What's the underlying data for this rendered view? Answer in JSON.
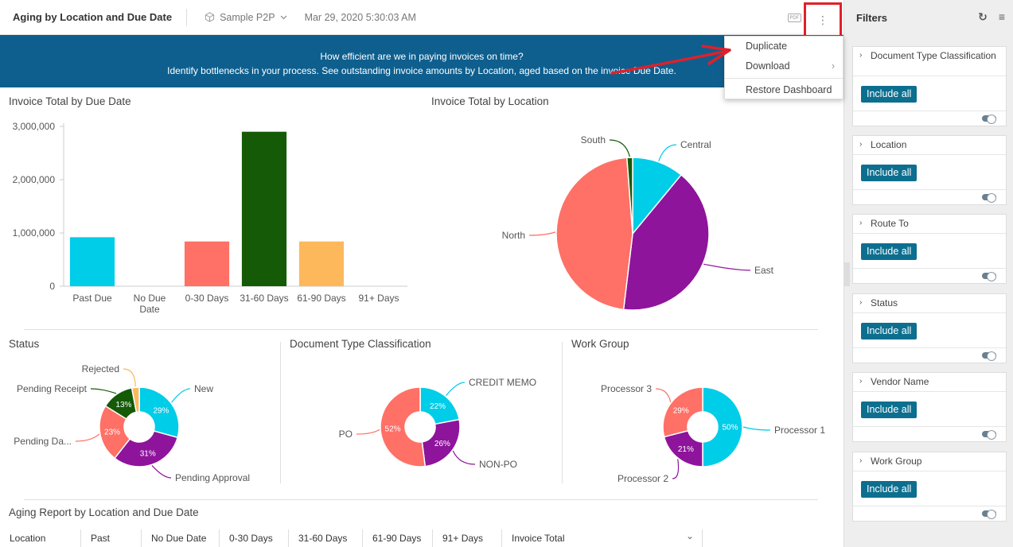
{
  "header": {
    "title": "Aging by Location and Due Date",
    "datasource": "Sample P2P",
    "timestamp": "Mar 29, 2020 5:30:03 AM",
    "pdf_label": "PDF",
    "more_label": "⋮"
  },
  "banner": {
    "line1": "How efficient are we in paying invoices on time?",
    "line2": "Identify bottlenecks in your process.  See outstanding invoice amounts by Location, aged based on the invoice Due Date."
  },
  "menu": {
    "items": [
      "Duplicate",
      "Download",
      "Restore Dashboard"
    ],
    "submenu_arrow": "›"
  },
  "panels": {
    "due_date": "Invoice Total by Due Date",
    "location": "Invoice Total by Location",
    "status": "Status",
    "doc_type": "Document Type Classification",
    "work_group": "Work Group",
    "aging_report": "Aging Report by Location and Due Date"
  },
  "chart_data": [
    {
      "type": "bar",
      "title": "Invoice Total by Due Date",
      "categories": [
        "Past Due",
        "No Due Date",
        "0-30 Days",
        "31-60 Days",
        "61-90 Days",
        "91+ Days"
      ],
      "category_lines": [
        [
          "Past Due"
        ],
        [
          "No Due",
          "Date"
        ],
        [
          "0-30 Days"
        ],
        [
          "31-60 Days"
        ],
        [
          "61-90 Days"
        ],
        [
          "91+ Days"
        ]
      ],
      "values": [
        920000,
        0,
        840000,
        2900000,
        840000,
        0
      ],
      "colors": [
        "#00cde8",
        "#ff7066",
        "#ff7066",
        "#145a07",
        "#fdb85c",
        "#cccccc"
      ],
      "ylim": [
        0,
        3000000
      ],
      "yticks": [
        0,
        1000000,
        2000000,
        3000000
      ],
      "ytick_labels": [
        "0",
        "1,000,000",
        "2,000,000",
        "3,000,000"
      ]
    },
    {
      "type": "pie",
      "title": "Invoice Total by Location",
      "slices": [
        {
          "label": "Central",
          "value": 11,
          "text": "11%",
          "color": "#00cde8"
        },
        {
          "label": "East",
          "value": 41,
          "text": "41%",
          "color": "#8e149c"
        },
        {
          "label": "North",
          "value": 47,
          "text": "47%",
          "color": "#ff7066"
        },
        {
          "label": "South",
          "value": 1.2,
          "text": "",
          "color": "#145a07"
        }
      ]
    },
    {
      "type": "pie",
      "title": "Status",
      "slices": [
        {
          "label": "New",
          "value": 29,
          "text": "29%",
          "color": "#00cde8"
        },
        {
          "label": "Pending Approval",
          "value": 31,
          "text": "31%",
          "color": "#8e149c"
        },
        {
          "label": "Pending Da...",
          "value": 23,
          "text": "23%",
          "color": "#ff7066"
        },
        {
          "label": "Pending Receipt",
          "value": 13,
          "text": "13%",
          "color": "#145a07"
        },
        {
          "label": "Rejected",
          "value": 3,
          "text": "",
          "color": "#fdb85c"
        }
      ]
    },
    {
      "type": "pie",
      "title": "Document Type Classification",
      "slices": [
        {
          "label": "CREDIT MEMO",
          "value": 22,
          "text": "22%",
          "color": "#00cde8"
        },
        {
          "label": "NON-PO",
          "value": 26,
          "text": "26%",
          "color": "#8e149c"
        },
        {
          "label": "PO",
          "value": 52,
          "text": "52%",
          "color": "#ff7066"
        }
      ]
    },
    {
      "type": "pie",
      "title": "Work Group",
      "slices": [
        {
          "label": "Processor 1",
          "value": 50,
          "text": "50%",
          "color": "#00cde8"
        },
        {
          "label": "Processor 2",
          "value": 21,
          "text": "21%",
          "color": "#8e149c"
        },
        {
          "label": "Processor 3",
          "value": 29,
          "text": "29%",
          "color": "#ff7066"
        }
      ]
    }
  ],
  "table": {
    "columns": [
      "Location",
      "Past",
      "No Due Date",
      "0-30 Days",
      "31-60 Days",
      "61-90 Days",
      "91+ Days",
      "Invoice Total"
    ],
    "expand_icon": "⌄"
  },
  "sidebar": {
    "title": "Filters",
    "refresh_icon": "↻",
    "menu_icon": "≡",
    "filters": [
      {
        "title": "Document Type Classification",
        "button": "Include all"
      },
      {
        "title": "Location",
        "button": "Include all"
      },
      {
        "title": "Route To",
        "button": "Include all"
      },
      {
        "title": "Status",
        "button": "Include all"
      },
      {
        "title": "Vendor Name",
        "button": "Include all"
      },
      {
        "title": "Work Group",
        "button": "Include all"
      }
    ]
  }
}
